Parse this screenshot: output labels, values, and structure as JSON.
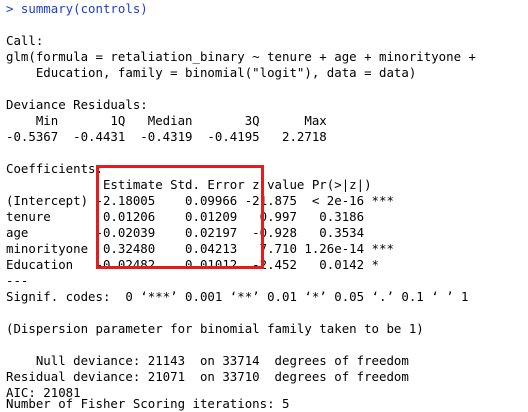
{
  "console": {
    "prompt": "> summary(controls)",
    "lines": [
      "",
      "Call:",
      "glm(formula = retaliation_binary ~ tenure + age + minorityone +",
      "    Education, family = binomial(\"logit\"), data = data)",
      "",
      "Deviance Residuals:",
      "    Min       1Q   Median       3Q      Max  ",
      "-0.5367  -0.4431  -0.4319  -0.4195   2.2718  ",
      "",
      "Coefficients:",
      "             Estimate Std. Error z value Pr(>|z|)    ",
      "(Intercept) -2.18005    0.09966 -21.875  < 2e-16 ***",
      "tenure       0.01206    0.01209   0.997   0.3186    ",
      "age         -0.02039    0.02197  -0.928   0.3534    ",
      "minorityone  0.32480    0.04213   7.710 1.26e-14 ***",
      "Education   -0.02482    0.01012  -2.452   0.0142 *  ",
      "---",
      "Signif. codes:  0 ‘***’ 0.001 ‘**’ 0.01 ‘*’ 0.05 ‘.’ 0.1 ‘ ’ 1",
      "",
      "(Dispersion parameter for binomial family taken to be 1)",
      "",
      "    Null deviance: 21143  on 33714  degrees of freedom",
      "Residual deviance: 21071  on 33710  degrees of freedom",
      "AIC: 21081",
      "",
      "Number of Fisher Scoring iterations: 5"
    ]
  },
  "colors": {
    "prompt": "#1e3cd6",
    "text": "#000000",
    "highlight": "#e01e1e",
    "background": "#ffffff"
  }
}
